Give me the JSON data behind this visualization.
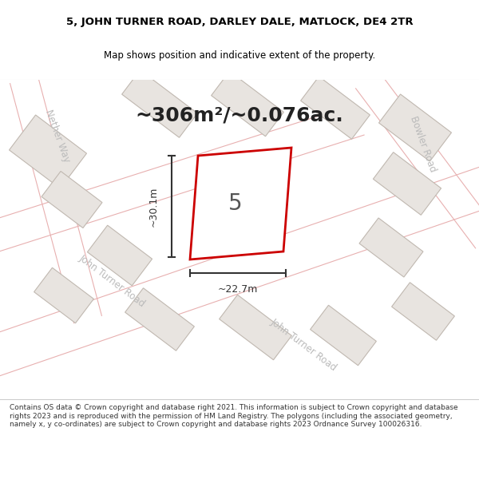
{
  "title_line1": "5, JOHN TURNER ROAD, DARLEY DALE, MATLOCK, DE4 2TR",
  "title_line2": "Map shows position and indicative extent of the property.",
  "area_text": "~306m²/~0.076ac.",
  "dim_width": "~22.7m",
  "dim_height": "~30.1m",
  "property_number": "5",
  "footer_text": "Contains OS data © Crown copyright and database right 2021. This information is subject to Crown copyright and database rights 2023 and is reproduced with the permission of HM Land Registry. The polygons (including the associated geometry, namely x, y co-ordinates) are subject to Crown copyright and database rights 2023 Ordnance Survey 100026316.",
  "bg_color": "#f0eeec",
  "map_bg": "#f0eeec",
  "road_color": "#ffffff",
  "road_stroke": "#cccccc",
  "building_fill": "#e8e4e0",
  "building_stroke": "#cccccc",
  "highlight_stroke": "#cc0000",
  "highlight_fill": "#ffffff",
  "dim_color": "#333333",
  "road_label_color": "#bbbbbb",
  "footer_bg": "#ffffff"
}
